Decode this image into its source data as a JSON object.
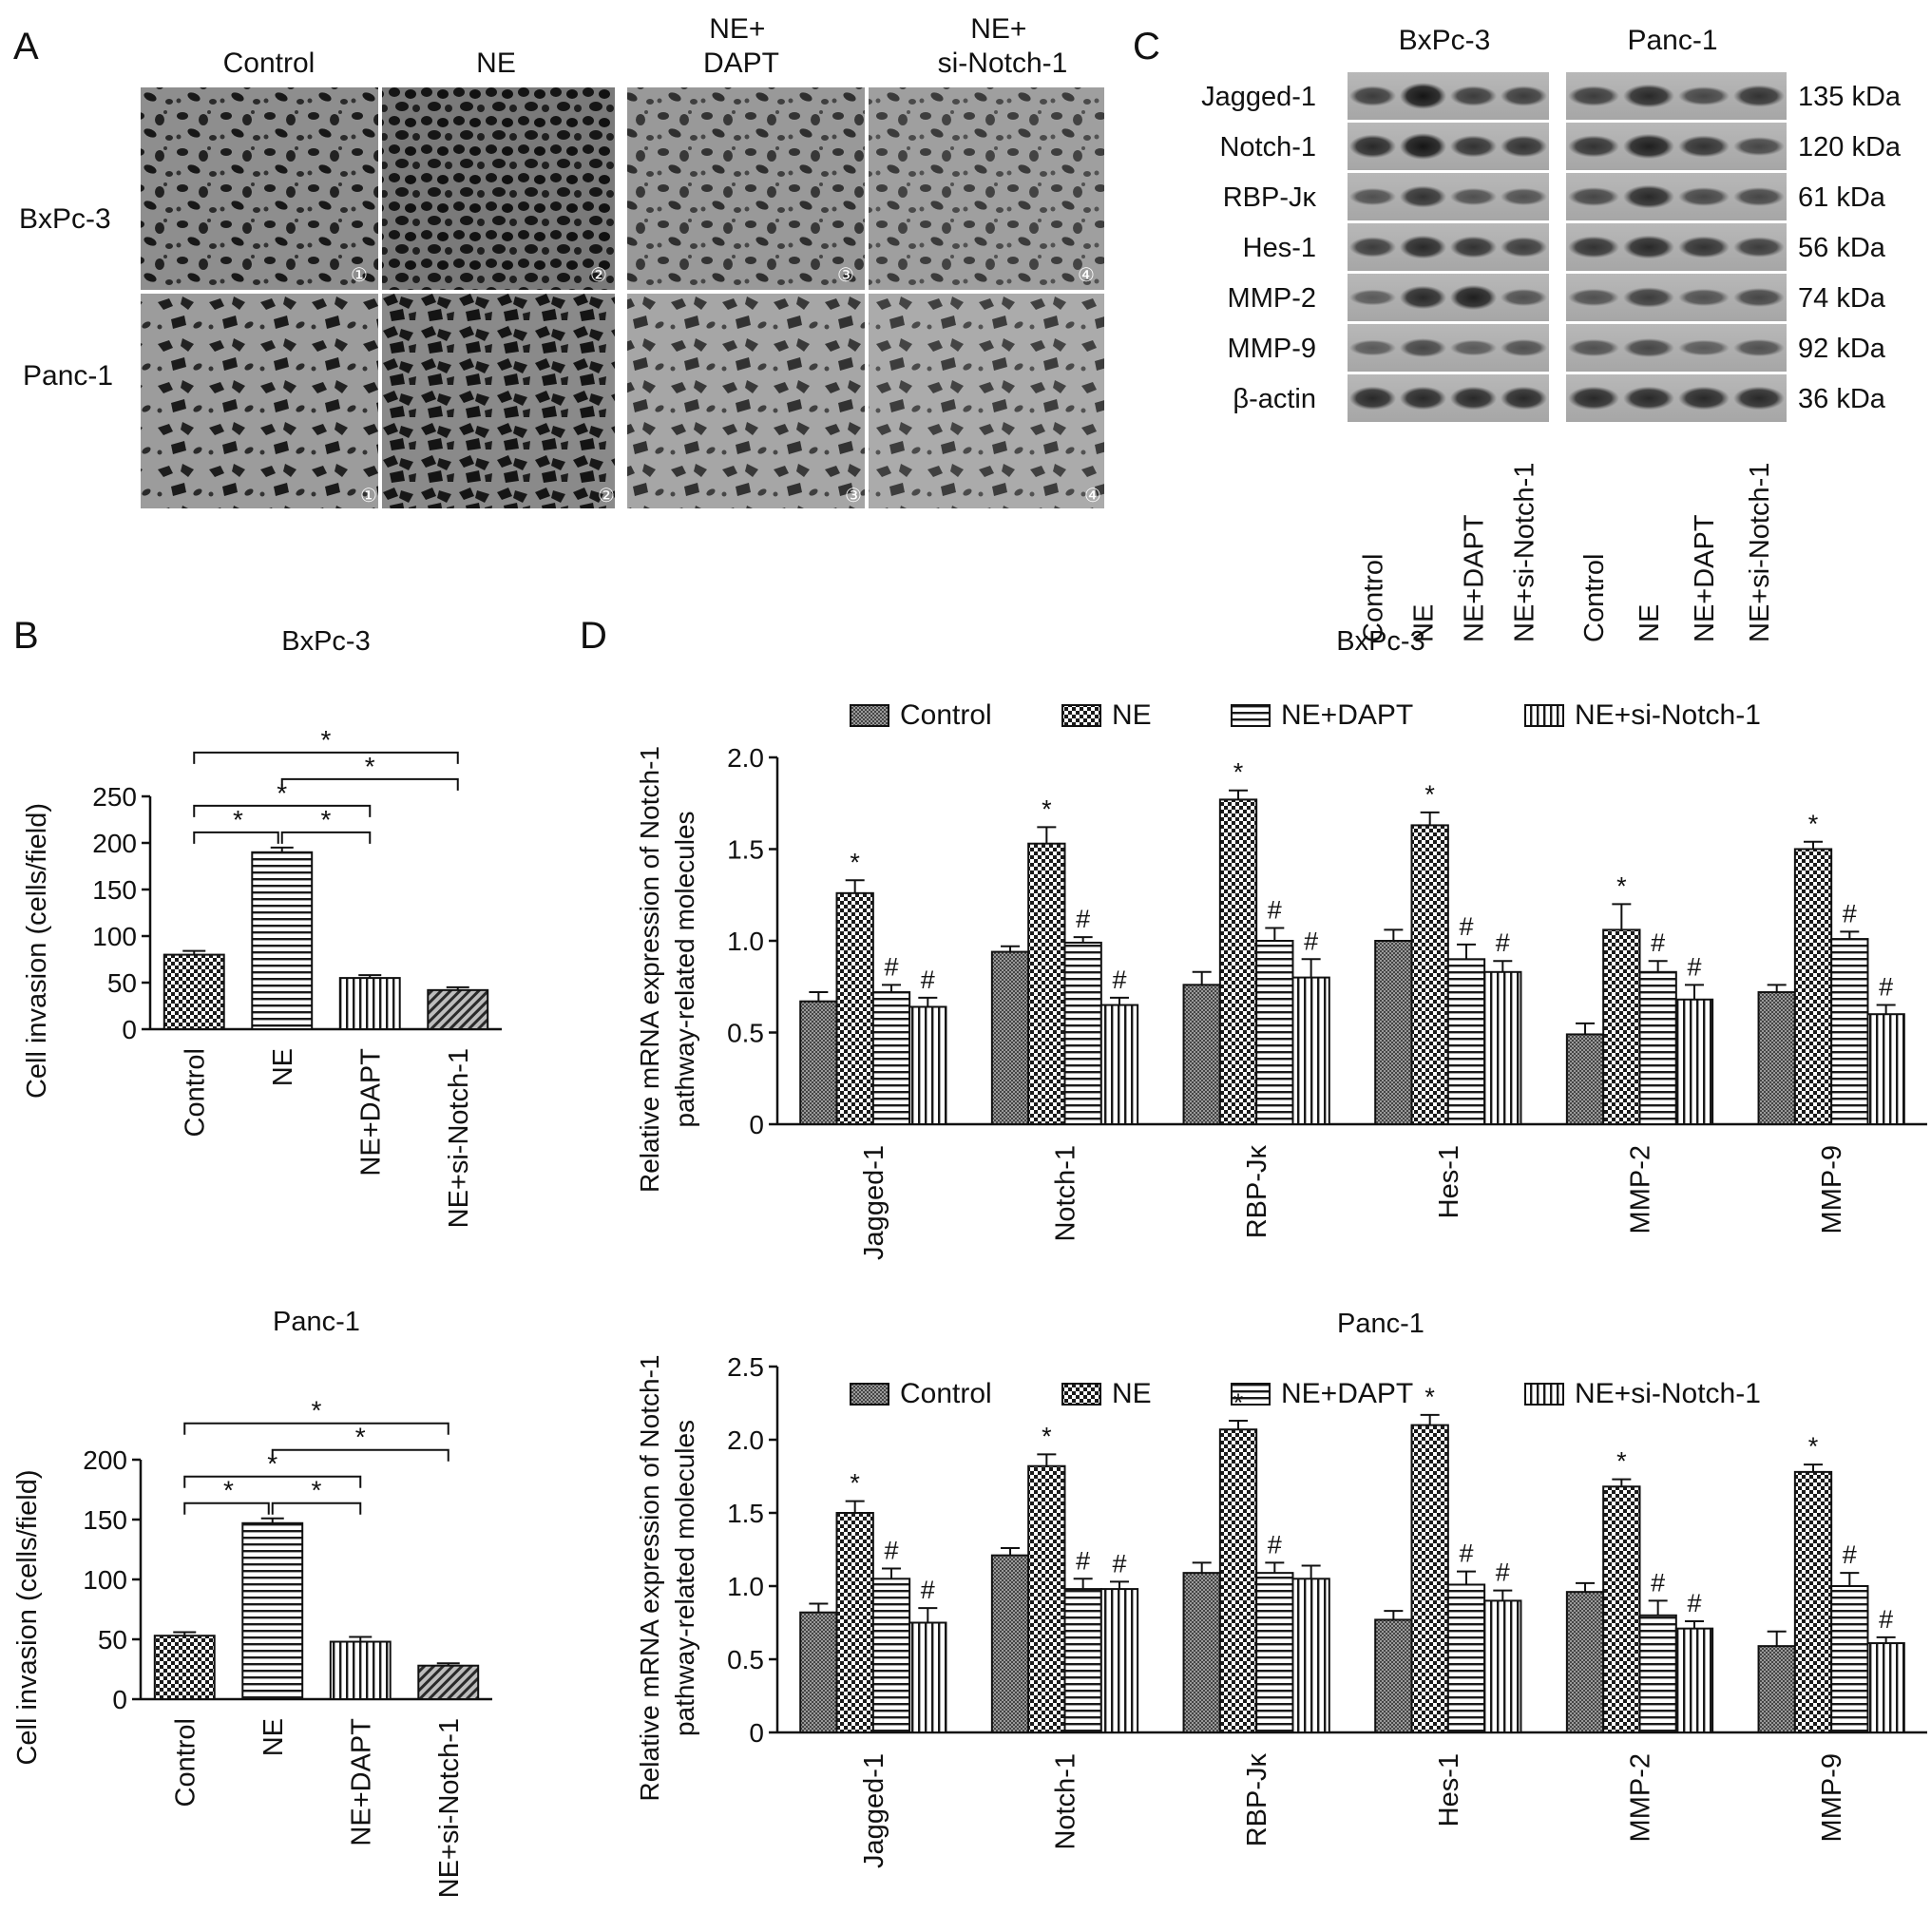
{
  "panels": {
    "A": {
      "letter": "A",
      "columns": [
        "Control",
        "NE",
        "NE+\nDAPT",
        "NE+\nsi-Notch-1"
      ],
      "rows": [
        "BxPc-3",
        "Panc-1"
      ],
      "cell_numbers": [
        "①",
        "②",
        "③",
        "④"
      ]
    },
    "B": {
      "letter": "B",
      "ylabel": "Cell invasion (cells/field)",
      "stars": [
        "*",
        "*",
        "*",
        "*",
        "*"
      ]
    },
    "C": {
      "letter": "C",
      "cell_lines": [
        "BxPc-3",
        "Panc-1"
      ],
      "proteins": [
        "Jagged-1",
        "Notch-1",
        "RBP-Jκ",
        "Hes-1",
        "MMP-2",
        "MMP-9",
        "β-actin"
      ],
      "sizes": [
        "135 kDa",
        "120 kDa",
        "61 kDa",
        "56 kDa",
        "74 kDa",
        "92 kDa",
        "36 kDa"
      ],
      "lanes": [
        "Control",
        "NE",
        "NE+DAPT",
        "NE+si-Notch-1"
      ]
    },
    "D": {
      "letter": "D",
      "ylabel_lines": [
        "Relative mRNA expression of Notch-1",
        "pathway-related molecules"
      ],
      "legend": [
        "Control",
        "NE",
        "NE+DAPT",
        "NE+si-Notch-1"
      ]
    }
  },
  "chart_data": [
    {
      "type": "bar",
      "title": "BxPc-3",
      "categories": [
        "Control",
        "NE",
        "NE+DAPT",
        "NE+si-Notch-1"
      ],
      "values": [
        80,
        190,
        55,
        42
      ],
      "errors": [
        4,
        5,
        3,
        3
      ],
      "ylabel": "Cell invasion (cells/field)",
      "ylim": [
        0,
        250
      ],
      "yticks": [
        0,
        50,
        100,
        150,
        200,
        250
      ],
      "significance": [
        {
          "from": "Control",
          "to": "NE",
          "label": "*"
        },
        {
          "from": "NE",
          "to": "NE+DAPT",
          "label": "*"
        },
        {
          "from": "Control",
          "to": "NE+DAPT",
          "label": "*"
        },
        {
          "from": "NE",
          "to": "NE+si-Notch-1",
          "label": "*"
        },
        {
          "from": "Control",
          "to": "NE+si-Notch-1",
          "label": "*"
        }
      ]
    },
    {
      "type": "bar",
      "title": "Panc-1",
      "categories": [
        "Control",
        "NE",
        "NE+DAPT",
        "NE+si-Notch-1"
      ],
      "values": [
        53,
        147,
        48,
        28
      ],
      "errors": [
        3,
        4,
        4,
        2
      ],
      "ylabel": "Cell invasion (cells/field)",
      "ylim": [
        0,
        200
      ],
      "yticks": [
        0,
        50,
        100,
        150,
        200
      ],
      "significance": [
        {
          "from": "Control",
          "to": "NE",
          "label": "*"
        },
        {
          "from": "NE",
          "to": "NE+DAPT",
          "label": "*"
        },
        {
          "from": "Control",
          "to": "NE+DAPT",
          "label": "*"
        },
        {
          "from": "NE",
          "to": "NE+si-Notch-1",
          "label": "*"
        },
        {
          "from": "Control",
          "to": "NE+si-Notch-1",
          "label": "*"
        }
      ]
    },
    {
      "type": "bar",
      "title": "BxPc-3",
      "categories": [
        "Jagged-1",
        "Notch-1",
        "RBP-Jκ",
        "Hes-1",
        "MMP-2",
        "MMP-9"
      ],
      "ylabel": "Relative mRNA expression of Notch-1 pathway-related molecules",
      "ylim": [
        0,
        2.0
      ],
      "yticks": [
        "0",
        "0.5",
        "1.0",
        "1.5",
        "2.0"
      ],
      "series": [
        {
          "name": "Control",
          "values": [
            0.67,
            0.94,
            0.76,
            1.0,
            0.49,
            0.72
          ],
          "errors": [
            0.05,
            0.03,
            0.07,
            0.06,
            0.06,
            0.04
          ],
          "marks": [
            "",
            "",
            "",
            "",
            "",
            ""
          ]
        },
        {
          "name": "NE",
          "values": [
            1.26,
            1.53,
            1.77,
            1.63,
            1.06,
            1.5
          ],
          "errors": [
            0.07,
            0.09,
            0.05,
            0.07,
            0.14,
            0.04
          ],
          "marks": [
            "*",
            "*",
            "*",
            "*",
            "*",
            "*"
          ]
        },
        {
          "name": "NE+DAPT",
          "values": [
            0.72,
            0.99,
            1.0,
            0.9,
            0.83,
            1.01
          ],
          "errors": [
            0.04,
            0.03,
            0.07,
            0.08,
            0.06,
            0.04
          ],
          "marks": [
            "#",
            "#",
            "#",
            "#",
            "#",
            "#"
          ]
        },
        {
          "name": "NE+si-Notch-1",
          "values": [
            0.64,
            0.65,
            0.8,
            0.83,
            0.68,
            0.6
          ],
          "errors": [
            0.05,
            0.04,
            0.1,
            0.06,
            0.08,
            0.05
          ],
          "marks": [
            "#",
            "#",
            "#",
            "#",
            "#",
            "#"
          ]
        }
      ]
    },
    {
      "type": "bar",
      "title": "Panc-1",
      "categories": [
        "Jagged-1",
        "Notch-1",
        "RBP-Jκ",
        "Hes-1",
        "MMP-2",
        "MMP-9"
      ],
      "ylabel": "Relative mRNA expression of Notch-1 pathway-related molecules",
      "ylim": [
        0,
        2.5
      ],
      "yticks": [
        "0",
        "0.5",
        "1.0",
        "1.5",
        "2.0",
        "2.5"
      ],
      "series": [
        {
          "name": "Control",
          "values": [
            0.82,
            1.21,
            1.09,
            0.77,
            0.96,
            0.59
          ],
          "errors": [
            0.06,
            0.05,
            0.07,
            0.06,
            0.06,
            0.1
          ],
          "marks": [
            "",
            "",
            "",
            "",
            "",
            ""
          ]
        },
        {
          "name": "NE",
          "values": [
            1.5,
            1.82,
            2.07,
            2.1,
            1.68,
            1.78
          ],
          "errors": [
            0.08,
            0.08,
            0.06,
            0.07,
            0.05,
            0.05
          ],
          "marks": [
            "*",
            "*",
            "*",
            "*",
            "*",
            "*"
          ]
        },
        {
          "name": "NE+DAPT",
          "values": [
            1.05,
            0.98,
            1.09,
            1.01,
            0.8,
            1.0
          ],
          "errors": [
            0.07,
            0.07,
            0.07,
            0.09,
            0.1,
            0.09
          ],
          "marks": [
            "#",
            "#",
            "#",
            "#",
            "#",
            "#"
          ]
        },
        {
          "name": "NE+si-Notch-1",
          "values": [
            0.75,
            0.98,
            1.05,
            0.9,
            0.71,
            0.61
          ],
          "errors": [
            0.1,
            0.05,
            0.09,
            0.07,
            0.05,
            0.04
          ],
          "marks": [
            "#",
            "#",
            "",
            "#",
            "#",
            "#"
          ]
        }
      ]
    }
  ]
}
